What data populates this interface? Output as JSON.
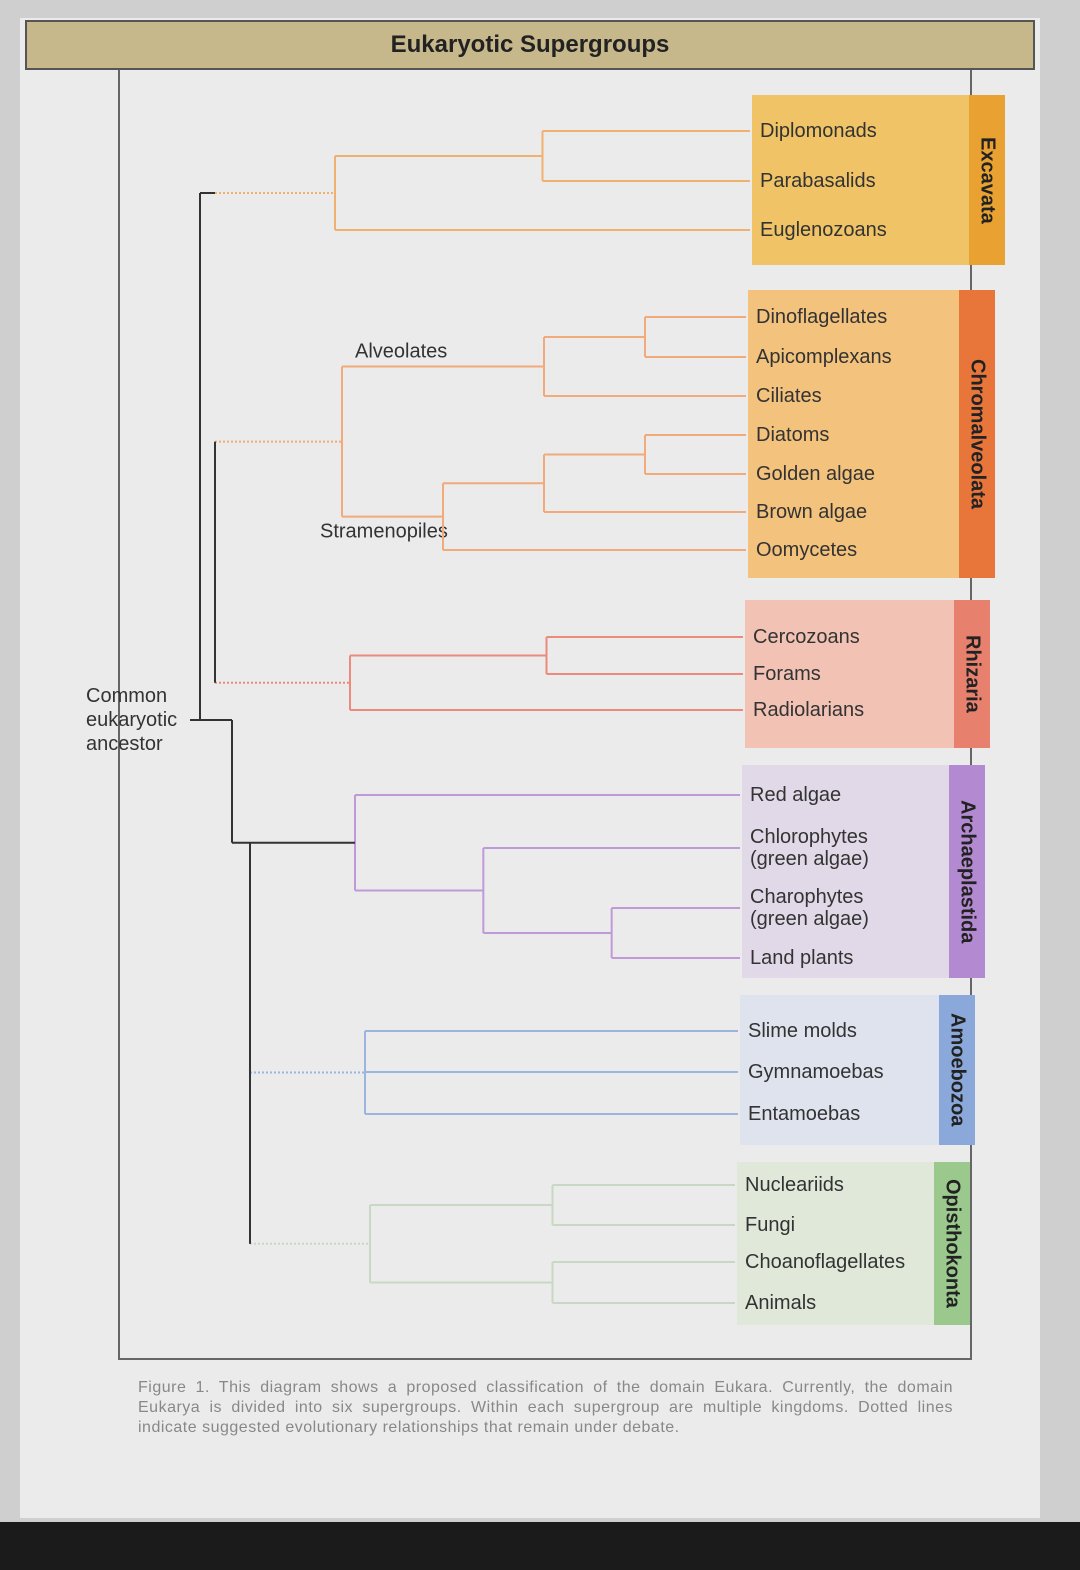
{
  "title": "Eukaryotic Supergroups",
  "root": "Common eukaryotic ancestor",
  "supergroups": [
    {
      "name": "Excavata",
      "leaves": [
        "Diplomonads",
        "Parabasalids",
        "Euglenozoans"
      ]
    },
    {
      "name": "Chromalveolata",
      "clades": [
        "Alveolates",
        "Stramenopiles"
      ],
      "leaves": [
        "Dinoflagellates",
        "Apicomplexans",
        "Ciliates",
        "Diatoms",
        "Golden algae",
        "Brown algae",
        "Oomycetes"
      ]
    },
    {
      "name": "Rhizaria",
      "leaves": [
        "Cercozoans",
        "Forams",
        "Radiolarians"
      ]
    },
    {
      "name": "Archaeplastida",
      "leaves": [
        "Red algae",
        "Chlorophytes (green algae)",
        "Charophytes (green algae)",
        "Land plants"
      ]
    },
    {
      "name": "Amoebozoa",
      "leaves": [
        "Slime molds",
        "Gymnamoebas",
        "Entamoebas"
      ]
    },
    {
      "name": "Opisthokonta",
      "leaves": [
        "Nucleariids",
        "Fungi",
        "Choanoflagellates",
        "Animals"
      ]
    }
  ],
  "caption": "Figure 1. This diagram shows a proposed classification of the domain Eukara. Currently, the domain Eukarya is divided into six supergroups. Within each supergroup are multiple kingdoms. Dotted lines indicate suggested evolutionary relationships that remain under debate."
}
